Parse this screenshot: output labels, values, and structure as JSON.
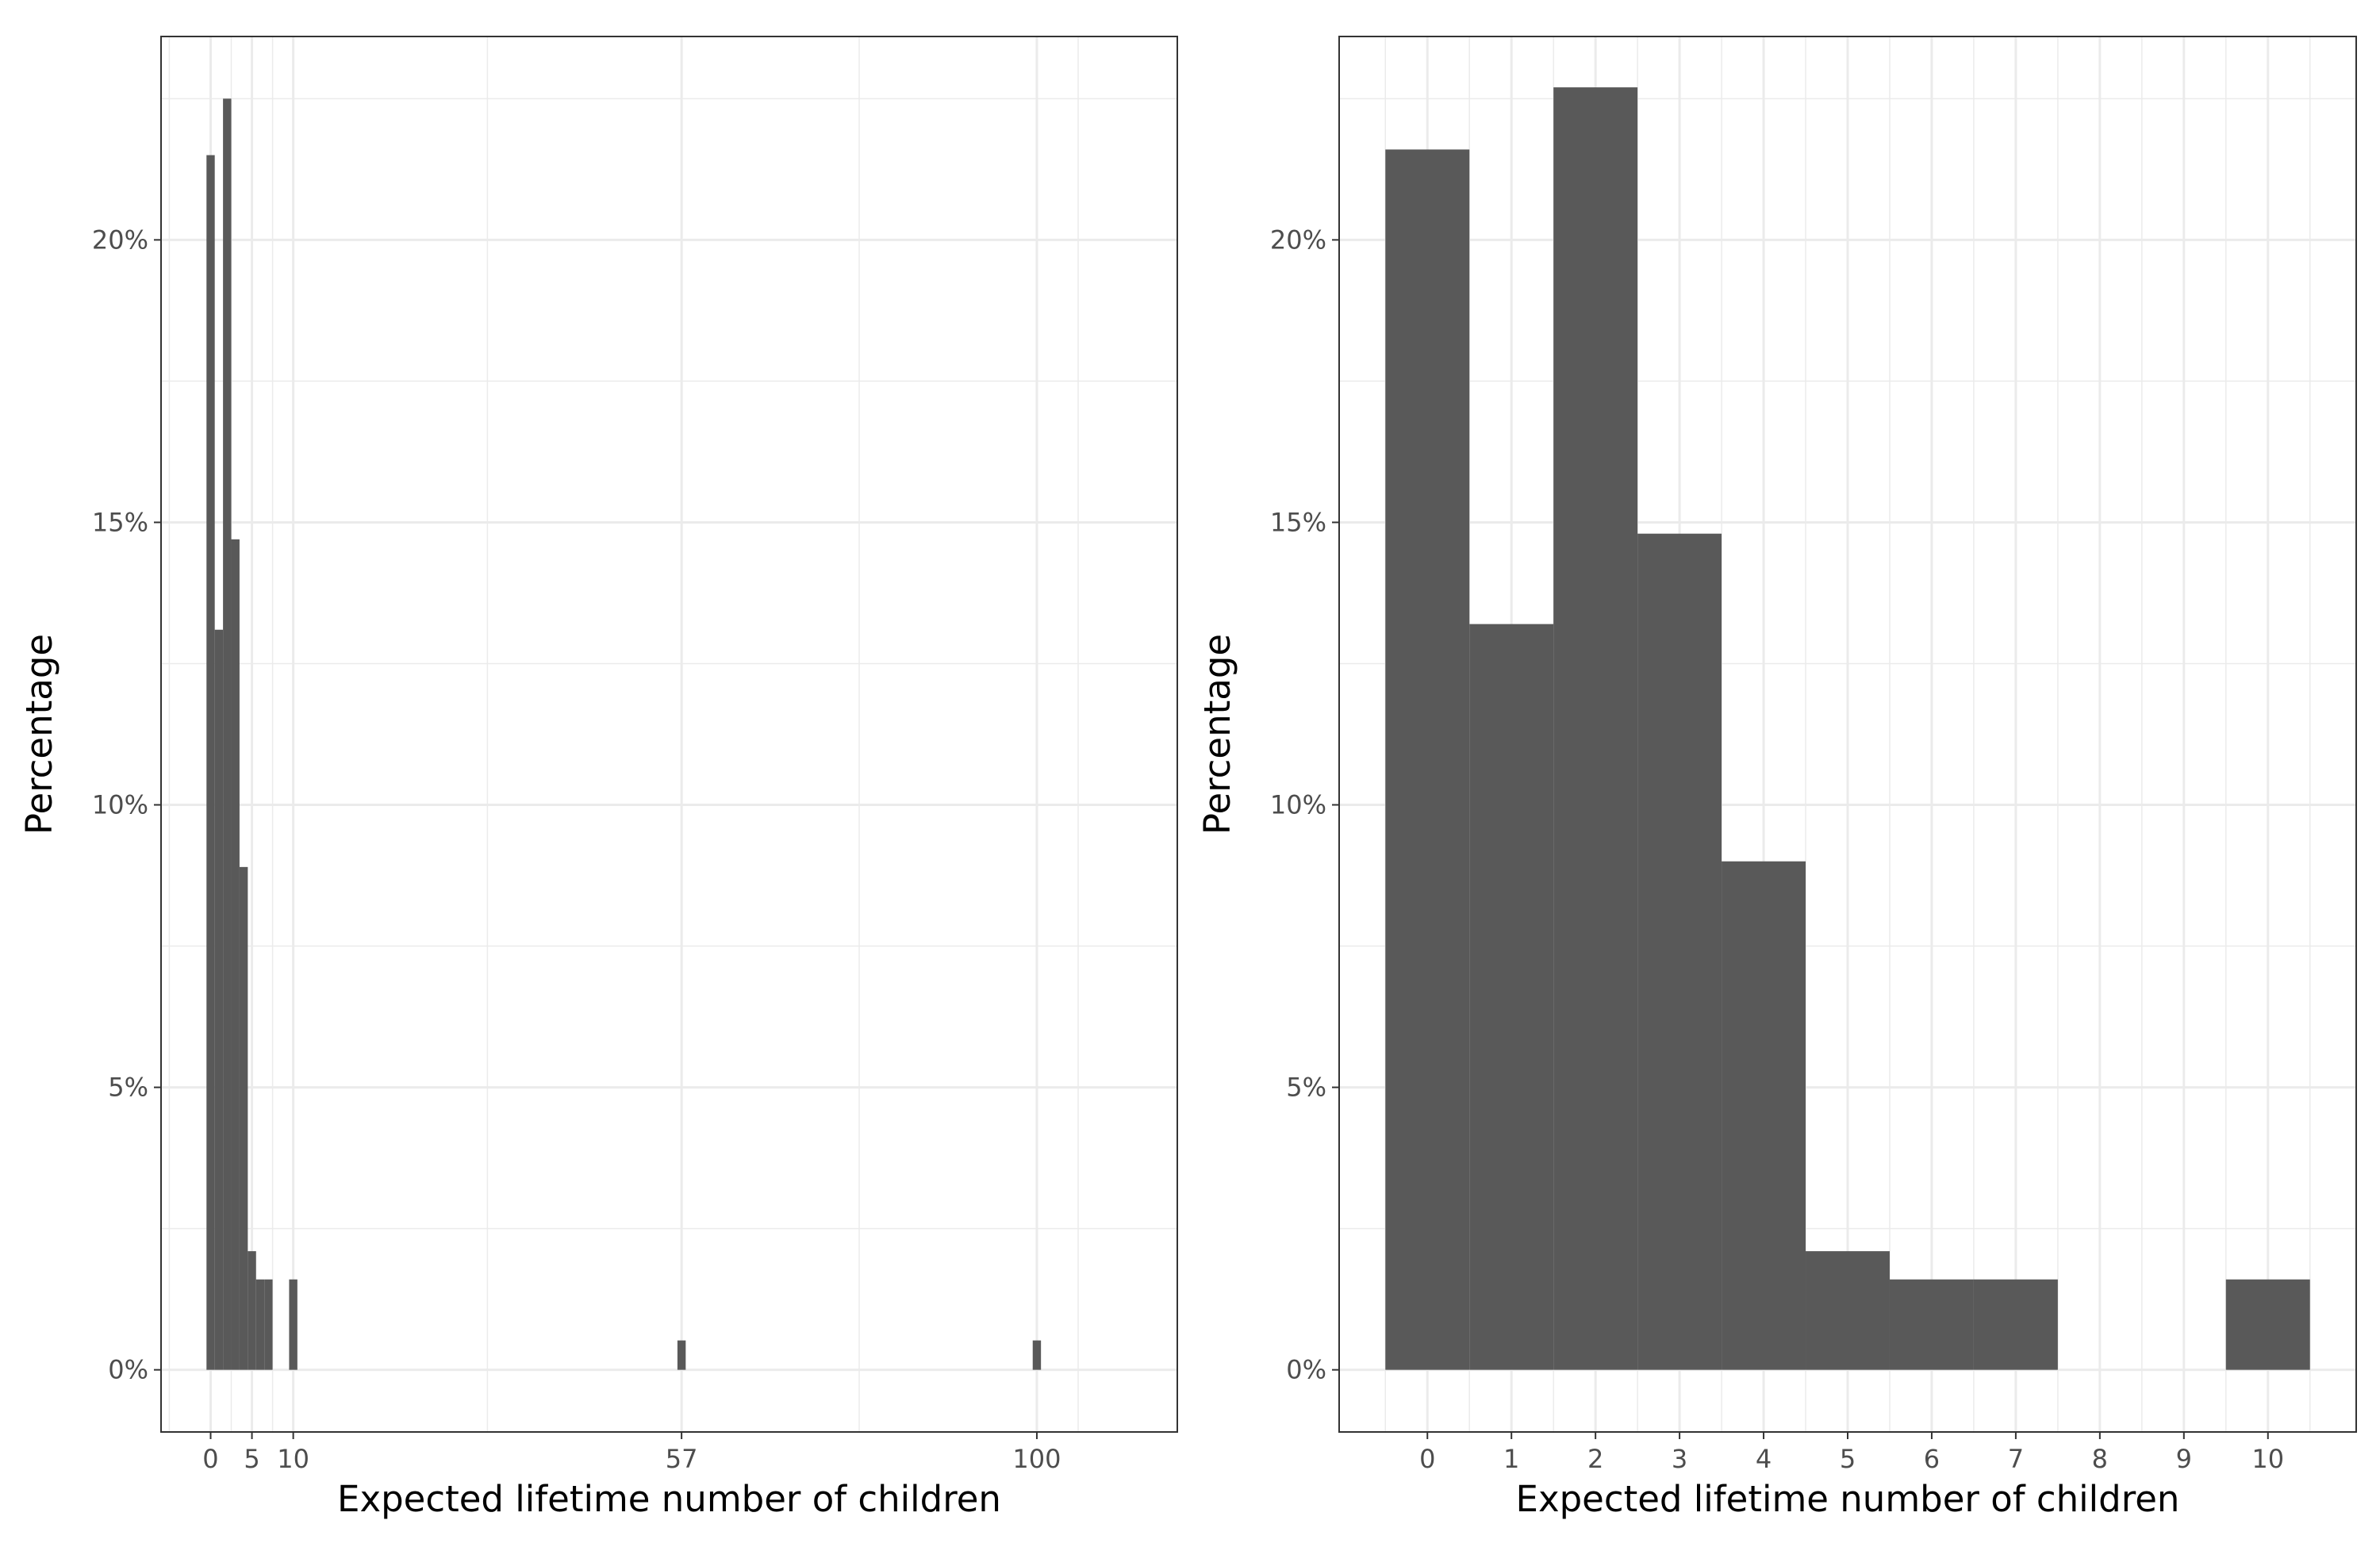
{
  "colors": {
    "bar_fill": "#595959",
    "grid": "#ebebeb",
    "panel_border": "#333333",
    "tick_text": "#4d4d4d",
    "background": "#ffffff"
  },
  "chart_data": [
    {
      "type": "bar",
      "xlabel": "Expected lifetime number of children",
      "ylabel": "Percentage",
      "xlim": [
        -6,
        117
      ],
      "ylim": [
        -1.1,
        23.6
      ],
      "x_ticks": [
        0,
        5,
        10,
        57,
        100
      ],
      "x_tick_labels": [
        "0",
        "5",
        "10",
        "57",
        "100"
      ],
      "x_major_grid": [
        0,
        5,
        10,
        57,
        100
      ],
      "x_minor_grid": [
        -5,
        2.5,
        7.5,
        33.5,
        78.5,
        105
      ],
      "y_ticks": [
        0,
        5,
        10,
        15,
        20
      ],
      "y_tick_labels": [
        "0%",
        "5%",
        "10%",
        "15%",
        "20%"
      ],
      "y_minor_grid": [
        2.5,
        7.5,
        12.5,
        17.5,
        22.5
      ],
      "bar_width": 1,
      "x": [
        0,
        1,
        2,
        3,
        4,
        5,
        6,
        7,
        10,
        57,
        100
      ],
      "values": [
        21.5,
        13.1,
        22.5,
        14.7,
        8.9,
        2.1,
        1.6,
        1.6,
        1.6,
        0.52,
        0.52
      ],
      "grid": true
    },
    {
      "type": "bar",
      "xlabel": "Expected lifetime number of children",
      "ylabel": "Percentage",
      "xlim": [
        -1.05,
        11.05
      ],
      "ylim": [
        -1.1,
        23.6
      ],
      "x_ticks": [
        0,
        1,
        2,
        3,
        4,
        5,
        6,
        7,
        8,
        9,
        10
      ],
      "x_tick_labels": [
        "0",
        "1",
        "2",
        "3",
        "4",
        "5",
        "6",
        "7",
        "8",
        "9",
        "10"
      ],
      "x_major_grid": [
        0,
        1,
        2,
        3,
        4,
        5,
        6,
        7,
        8,
        9,
        10
      ],
      "x_minor_grid": [
        -0.5,
        0.5,
        1.5,
        2.5,
        3.5,
        4.5,
        5.5,
        6.5,
        7.5,
        8.5,
        9.5,
        10.5
      ],
      "y_ticks": [
        0,
        5,
        10,
        15,
        20
      ],
      "y_tick_labels": [
        "0%",
        "5%",
        "10%",
        "15%",
        "20%"
      ],
      "y_minor_grid": [
        2.5,
        7.5,
        12.5,
        17.5,
        22.5
      ],
      "bar_width": 1,
      "x": [
        0,
        1,
        2,
        3,
        4,
        5,
        6,
        7,
        10
      ],
      "values": [
        21.6,
        13.2,
        22.7,
        14.8,
        9.0,
        2.1,
        1.6,
        1.6,
        1.6
      ],
      "grid": true
    }
  ]
}
